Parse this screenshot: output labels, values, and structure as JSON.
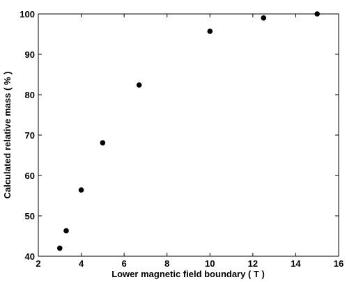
{
  "chart_data": {
    "type": "scatter",
    "title": "",
    "xlabel": "Lower magnetic field boundary ( T )",
    "ylabel": "Calculated relative mass ( % )",
    "xlim": [
      2,
      16
    ],
    "ylim": [
      40,
      100
    ],
    "xticks": [
      2,
      4,
      6,
      8,
      10,
      12,
      14,
      16
    ],
    "yticks": [
      40,
      50,
      60,
      70,
      80,
      90,
      100
    ],
    "grid": false,
    "legend": "none",
    "box": true,
    "series": [
      {
        "color": "#000000",
        "marker": "filled-circle",
        "points": [
          {
            "x": 3.0,
            "y": 42.0
          },
          {
            "x": 3.3,
            "y": 46.3
          },
          {
            "x": 4.0,
            "y": 56.4
          },
          {
            "x": 5.0,
            "y": 68.1
          },
          {
            "x": 6.7,
            "y": 82.4
          },
          {
            "x": 10.0,
            "y": 95.7
          },
          {
            "x": 12.5,
            "y": 99.0
          },
          {
            "x": 15.0,
            "y": 100.0
          }
        ]
      }
    ]
  }
}
